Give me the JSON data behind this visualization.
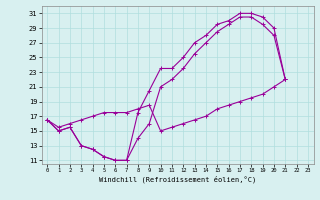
{
  "xlabel": "Windchill (Refroidissement éolien,°C)",
  "xlim": [
    -0.5,
    23.5
  ],
  "ylim": [
    10.5,
    32
  ],
  "xticks": [
    0,
    1,
    2,
    3,
    4,
    5,
    6,
    7,
    8,
    9,
    10,
    11,
    12,
    13,
    14,
    15,
    16,
    17,
    18,
    19,
    20,
    21,
    22,
    23
  ],
  "yticks": [
    11,
    13,
    15,
    17,
    19,
    21,
    23,
    25,
    27,
    29,
    31
  ],
  "bg_color": "#d8f0f0",
  "line_color": "#990099",
  "grid_color": "#b0dede",
  "line1_x": [
    0,
    1,
    2,
    3,
    4,
    5,
    6,
    7,
    8,
    9,
    10,
    11,
    12,
    13,
    14,
    15,
    16,
    17,
    18,
    19,
    20,
    21
  ],
  "line1_y": [
    16.5,
    15.0,
    15.5,
    13.0,
    12.5,
    11.5,
    11.0,
    11.0,
    17.5,
    20.5,
    23.5,
    23.5,
    25.0,
    27.0,
    28.0,
    29.5,
    30.0,
    31.0,
    31.0,
    30.5,
    29.0,
    22.0
  ],
  "line2_x": [
    0,
    1,
    2,
    3,
    4,
    5,
    6,
    7,
    8,
    9,
    10,
    11,
    12,
    13,
    14,
    15,
    16,
    17,
    18,
    19,
    20,
    21
  ],
  "line2_y": [
    16.5,
    15.0,
    15.5,
    13.0,
    12.5,
    11.5,
    11.0,
    11.0,
    14.0,
    16.0,
    21.0,
    22.0,
    23.5,
    25.5,
    27.0,
    28.5,
    29.5,
    30.5,
    30.5,
    29.5,
    28.0,
    22.0
  ],
  "line3_x": [
    0,
    1,
    2,
    3,
    4,
    5,
    6,
    7,
    8,
    9,
    10,
    11,
    12,
    13,
    14,
    15,
    16,
    17,
    18,
    19,
    20,
    21
  ],
  "line3_y": [
    16.5,
    15.5,
    16.0,
    16.5,
    17.0,
    17.5,
    17.5,
    17.5,
    18.0,
    18.5,
    15.0,
    15.5,
    16.0,
    16.5,
    17.0,
    18.0,
    18.5,
    19.0,
    19.5,
    20.0,
    21.0,
    22.0
  ]
}
